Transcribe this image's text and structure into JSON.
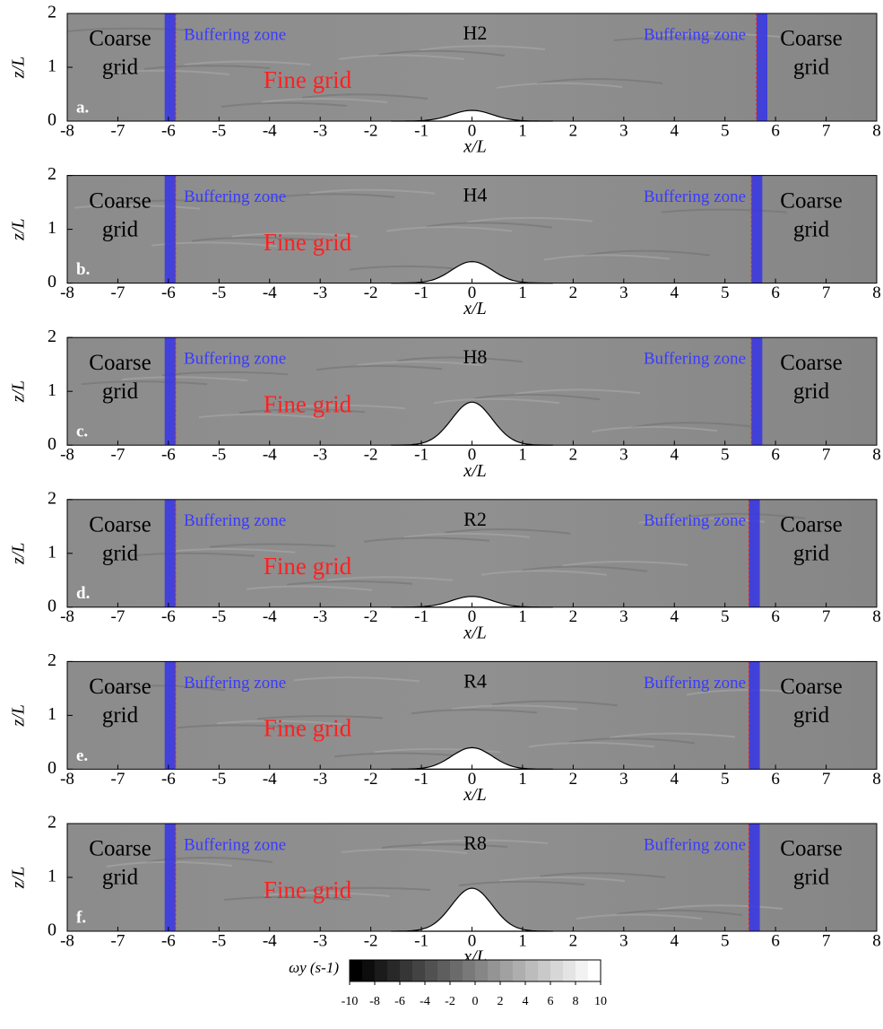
{
  "chart_data": [
    {
      "type": "field",
      "panel_label": "a.",
      "case": "H2",
      "hill_height": 0.2,
      "xlabel": "x/L",
      "ylabel": "z/L",
      "xlim": [
        -8,
        8
      ],
      "ylim": [
        0,
        2
      ],
      "xticks": [
        -8,
        -7,
        -6,
        -5,
        -4,
        -3,
        -2,
        -1,
        0,
        1,
        2,
        3,
        4,
        5,
        6,
        7,
        8
      ],
      "yticks": [
        0,
        1,
        2
      ],
      "buffer_x": [
        -5.95,
        5.75
      ],
      "buffer_left": "Buffering zone",
      "buffer_right": "Buffering zone",
      "fine": "Fine grid",
      "coarse_left": [
        "Coarse",
        "grid"
      ],
      "coarse_right": [
        "Coarse",
        "grid"
      ]
    },
    {
      "type": "field",
      "panel_label": "b.",
      "case": "H4",
      "hill_height": 0.4,
      "xlabel": "x/L",
      "ylabel": "z/L",
      "xlim": [
        -8,
        8
      ],
      "ylim": [
        0,
        2
      ],
      "xticks": [
        -8,
        -7,
        -6,
        -5,
        -4,
        -3,
        -2,
        -1,
        0,
        1,
        2,
        3,
        4,
        5,
        6,
        7,
        8
      ],
      "yticks": [
        0,
        1,
        2
      ],
      "buffer_x": [
        -5.95,
        5.65
      ],
      "buffer_left": "Buffering zone",
      "buffer_right": "Buffering zone",
      "fine": "Fine grid",
      "coarse_left": [
        "Coarse",
        "grid"
      ],
      "coarse_right": [
        "Coarse",
        "grid"
      ]
    },
    {
      "type": "field",
      "panel_label": "c.",
      "case": "H8",
      "hill_height": 0.8,
      "xlabel": "x/L",
      "ylabel": "z/L",
      "xlim": [
        -8,
        8
      ],
      "ylim": [
        0,
        2
      ],
      "xticks": [
        -8,
        -7,
        -6,
        -5,
        -4,
        -3,
        -2,
        -1,
        0,
        1,
        2,
        3,
        4,
        5,
        6,
        7,
        8
      ],
      "yticks": [
        0,
        1,
        2
      ],
      "buffer_x": [
        -5.95,
        5.65
      ],
      "buffer_left": "Buffering zone",
      "buffer_right": "Buffering zone",
      "fine": "Fine grid",
      "coarse_left": [
        "Coarse",
        "grid"
      ],
      "coarse_right": [
        "Coarse",
        "grid"
      ]
    },
    {
      "type": "field",
      "panel_label": "d.",
      "case": "R2",
      "hill_height": 0.2,
      "xlabel": "x/L",
      "ylabel": "z/L",
      "xlim": [
        -8,
        8
      ],
      "ylim": [
        0,
        2
      ],
      "xticks": [
        -8,
        -7,
        -6,
        -5,
        -4,
        -3,
        -2,
        -1,
        0,
        1,
        2,
        3,
        4,
        5,
        6,
        7,
        8
      ],
      "yticks": [
        0,
        1,
        2
      ],
      "buffer_x": [
        -5.95,
        5.6
      ],
      "buffer_left": "Buffering zone",
      "buffer_right": "Buffering zone",
      "fine": "Fine grid",
      "coarse_left": [
        "Coarse",
        "grid"
      ],
      "coarse_right": [
        "Coarse",
        "grid"
      ]
    },
    {
      "type": "field",
      "panel_label": "e.",
      "case": "R4",
      "hill_height": 0.4,
      "xlabel": "x/L",
      "ylabel": "z/L",
      "xlim": [
        -8,
        8
      ],
      "ylim": [
        0,
        2
      ],
      "xticks": [
        -8,
        -7,
        -6,
        -5,
        -4,
        -3,
        -2,
        -1,
        0,
        1,
        2,
        3,
        4,
        5,
        6,
        7,
        8
      ],
      "yticks": [
        0,
        1,
        2
      ],
      "buffer_x": [
        -5.95,
        5.6
      ],
      "buffer_left": "Buffering zone",
      "buffer_right": "Buffering zone",
      "fine": "Fine grid",
      "coarse_left": [
        "Coarse",
        "grid"
      ],
      "coarse_right": [
        "Coarse",
        "grid"
      ]
    },
    {
      "type": "field",
      "panel_label": "f.",
      "case": "R8",
      "hill_height": 0.8,
      "xlabel": "x/L",
      "ylabel": "z/L",
      "xlim": [
        -8,
        8
      ],
      "ylim": [
        0,
        2
      ],
      "xticks": [
        -8,
        -7,
        -6,
        -5,
        -4,
        -3,
        -2,
        -1,
        0,
        1,
        2,
        3,
        4,
        5,
        6,
        7,
        8
      ],
      "yticks": [
        0,
        1,
        2
      ],
      "buffer_x": [
        -5.95,
        5.6
      ],
      "buffer_left": "Buffering zone",
      "buffer_right": "Buffering zone",
      "fine": "Fine grid",
      "coarse_left": [
        "Coarse",
        "grid"
      ],
      "coarse_right": [
        "Coarse",
        "grid"
      ]
    }
  ],
  "colorbar": {
    "label": "ωy (s-1)",
    "lim": [
      -10,
      10
    ],
    "ticks": [
      -10,
      -8,
      -6,
      -4,
      -2,
      0,
      2,
      4,
      6,
      8,
      10
    ]
  }
}
